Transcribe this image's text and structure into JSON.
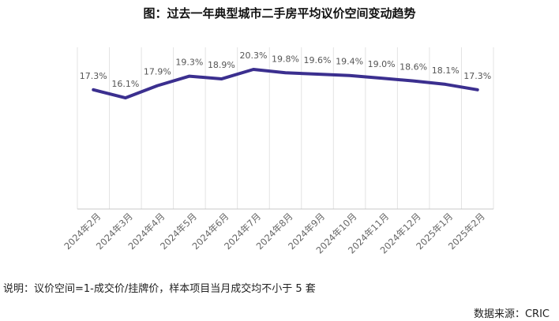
{
  "title": "图：过去一年典型城市二手房平均议价空间变动趋势",
  "note": "说明：议价空间=1-成交价/挂牌价，样本项目当月成交均不小于 5 套",
  "source": "数据来源：CRIC",
  "chart_data": {
    "type": "line",
    "categories": [
      "2024年2月",
      "2024年3月",
      "2024年4月",
      "2024年5月",
      "2024年6月",
      "2024年7月",
      "2024年8月",
      "2024年9月",
      "2024年10月",
      "2024年11月",
      "2024年12月",
      "2025年1月",
      "2025年2月"
    ],
    "values": [
      17.3,
      16.1,
      17.9,
      19.3,
      18.9,
      20.3,
      19.8,
      19.6,
      19.4,
      19.0,
      18.6,
      18.1,
      17.3
    ],
    "data_labels": [
      "17.3%",
      "16.1%",
      "17.9%",
      "19.3%",
      "18.9%",
      "20.3%",
      "19.8%",
      "19.6%",
      "19.4%",
      "19.0%",
      "18.6%",
      "18.1%",
      "17.3%"
    ],
    "line_color": "#3b2f8f",
    "grid": "vertical",
    "legend": "none"
  }
}
